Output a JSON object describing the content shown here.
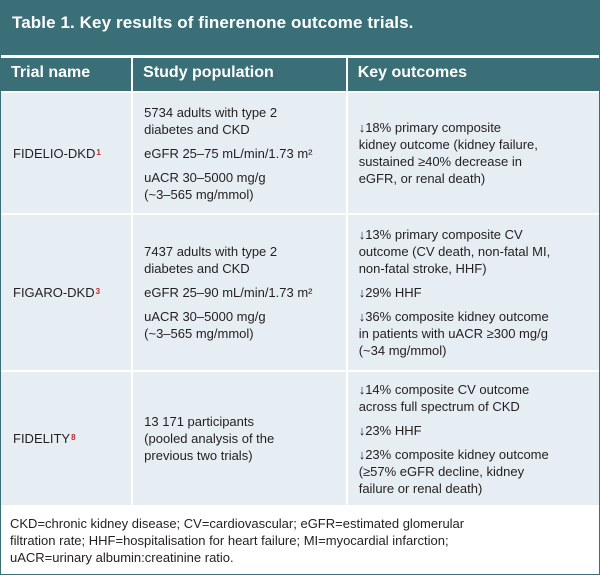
{
  "title": "Table 1. Key results of finerenone outcome trials.",
  "headers": {
    "trial": "Trial name",
    "population": "Study population",
    "outcomes": "Key outcomes"
  },
  "rows": [
    {
      "trial": "FIDELIO-DKD",
      "ref": "1",
      "population": [
        "5734 adults with type 2\ndiabetes and CKD",
        "eGFR 25–75 mL/min/1.73 m²",
        "uACR 30–5000 mg/g\n(~3–565 mg/mmol)"
      ],
      "outcomes": [
        "↓18% primary composite\nkidney outcome (kidney failure,\nsustained ≥40% decrease in\neGFR, or renal death)"
      ]
    },
    {
      "trial": "FIGARO-DKD",
      "ref": "3",
      "population": [
        "7437 adults with type 2\ndiabetes and CKD",
        "eGFR 25–90 mL/min/1.73 m²",
        "uACR 30–5000 mg/g\n(~3–565 mg/mmol)"
      ],
      "outcomes": [
        "↓13% primary composite CV\noutcome (CV death, non-fatal MI,\nnon-fatal stroke, HHF)",
        "↓29% HHF",
        "↓36% composite kidney outcome\nin patients with uACR ≥300 mg/g\n(~34 mg/mmol)"
      ]
    },
    {
      "trial": "FIDELITY",
      "ref": "8",
      "population": [
        "13 171 participants\n(pooled analysis of the\nprevious two trials)"
      ],
      "outcomes": [
        "↓14% composite CV outcome\nacross full spectrum of CKD",
        "↓23% HHF",
        "↓23% composite kidney outcome\n(≥57% eGFR decline, kidney\nfailure or renal death)"
      ]
    }
  ],
  "footnote": "CKD=chronic kidney disease; CV=cardiovascular; eGFR=estimated glomerular\nfiltration rate; HHF=hospitalisation for heart failure; MI=myocardial infarction;\nuACR=urinary albumin:creatinine ratio.",
  "colors": {
    "header_bg": "#3a6f78",
    "row_bg": "#e6eef3",
    "reference_mark": "#c8272e"
  }
}
